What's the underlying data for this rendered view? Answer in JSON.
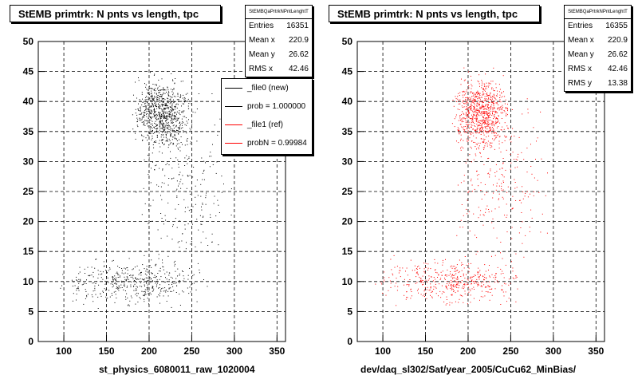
{
  "chart_data": [
    {
      "type": "scatter",
      "title": "StEMB primtrk: N pnts vs length, tpc",
      "xlabel": "st_physics_6080011_raw_1020004",
      "ylabel": "",
      "xlim": [
        70,
        360
      ],
      "ylim": [
        0,
        50
      ],
      "xticks": [
        100,
        150,
        200,
        250,
        300,
        350
      ],
      "yticks": [
        0,
        5,
        10,
        15,
        20,
        25,
        30,
        35,
        40,
        45,
        50
      ],
      "grid": true,
      "marker_color": "#000000",
      "stats": {
        "name": "StEMBQaPrtrkNPntLenghtT",
        "rows": [
          {
            "label": "Entries",
            "value": "16351"
          },
          {
            "label": "Mean x",
            "value": "220.9"
          },
          {
            "label": "Mean y",
            "value": "26.62"
          },
          {
            "label": "RMS x",
            "value": "42.46"
          }
        ]
      },
      "legend": {
        "placement": "top-right",
        "entries": [
          {
            "label": "_file0 (new)",
            "color": "#000000"
          },
          {
            "label": "prob = 1.000000",
            "color": "#000000"
          },
          {
            "label": "_file1 (ref)",
            "color": "#ff0000"
          },
          {
            "label": "probN = 0.99984",
            "color": "#ff0000"
          }
        ]
      },
      "clusters": [
        {
          "x_range": [
            180,
            250
          ],
          "y_range": [
            30,
            46
          ],
          "density": 0.9
        },
        {
          "x_range": [
            90,
            270
          ],
          "y_range": [
            5,
            15
          ],
          "density": 0.5
        },
        {
          "x_range": [
            180,
            300
          ],
          "y_range": [
            8,
            46
          ],
          "density": 0.25
        }
      ]
    },
    {
      "type": "scatter",
      "title": "StEMB primtrk: N pnts vs length, tpc",
      "xlabel": "dev/daq_sl302/Sat/year_2005/CuCu62_MinBias/",
      "ylabel": "",
      "xlim": [
        70,
        360
      ],
      "ylim": [
        0,
        50
      ],
      "xticks": [
        100,
        150,
        200,
        250,
        300,
        350
      ],
      "yticks": [
        0,
        5,
        10,
        15,
        20,
        25,
        30,
        35,
        40,
        45,
        50
      ],
      "grid": true,
      "marker_color": "#ff0000",
      "stats": {
        "name": "StEMBQaPrtrkNPntLenghtT",
        "rows": [
          {
            "label": "Entries",
            "value": "16355"
          },
          {
            "label": "Mean x",
            "value": "220.9"
          },
          {
            "label": "Mean y",
            "value": "26.62"
          },
          {
            "label": "RMS x",
            "value": "42.46"
          },
          {
            "label": "RMS y",
            "value": "13.38"
          }
        ]
      },
      "clusters": [
        {
          "x_range": [
            180,
            250
          ],
          "y_range": [
            30,
            46
          ],
          "density": 0.9
        },
        {
          "x_range": [
            90,
            270
          ],
          "y_range": [
            5,
            15
          ],
          "density": 0.5
        },
        {
          "x_range": [
            180,
            300
          ],
          "y_range": [
            8,
            46
          ],
          "density": 0.25
        }
      ]
    }
  ]
}
